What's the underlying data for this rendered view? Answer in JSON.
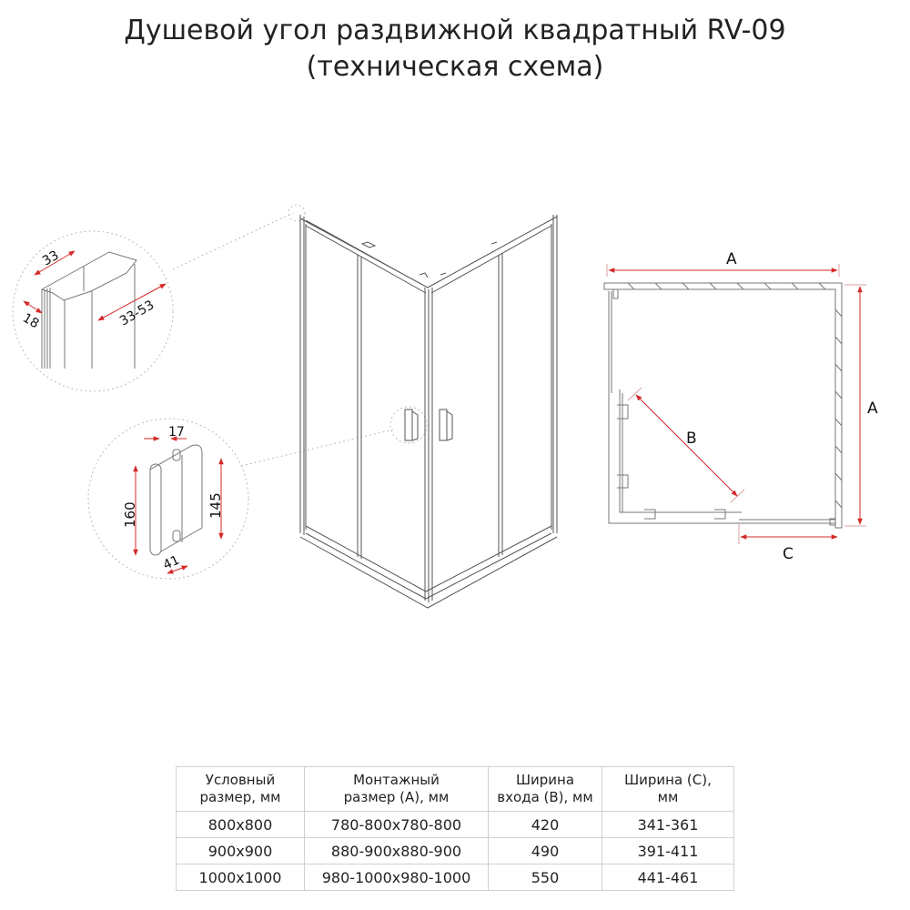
{
  "title": {
    "line1": "Душевой угол раздвижной квадратный RV-09",
    "line2": "(техническая схема)"
  },
  "profile_detail": {
    "dim_width": "33",
    "dim_depth": "18",
    "dim_adjust": "33-53"
  },
  "handle_detail": {
    "dim_diameter": "17",
    "dim_height": "160",
    "dim_centers": "145",
    "dim_offset": "41"
  },
  "plan_view": {
    "label_a_top": "A",
    "label_a_side": "A",
    "label_b": "B",
    "label_c": "C"
  },
  "colors": {
    "dimension": "#d42a2a",
    "line": "#555555",
    "leader": "#aaaaaa"
  },
  "table": {
    "headers": [
      {
        "line1": "Условный",
        "line2": "размер, мм"
      },
      {
        "line1": "Монтажный",
        "line2": "размер (А), мм"
      },
      {
        "line1": "Ширина",
        "line2": "входа (В), мм"
      },
      {
        "line1": "Ширина (С),",
        "line2": "мм"
      }
    ],
    "rows": [
      [
        "800x800",
        "780-800x780-800",
        "420",
        "341-361"
      ],
      [
        "900x900",
        "880-900x880-900",
        "490",
        "391-411"
      ],
      [
        "1000x1000",
        "980-1000x980-1000",
        "550",
        "441-461"
      ]
    ]
  }
}
